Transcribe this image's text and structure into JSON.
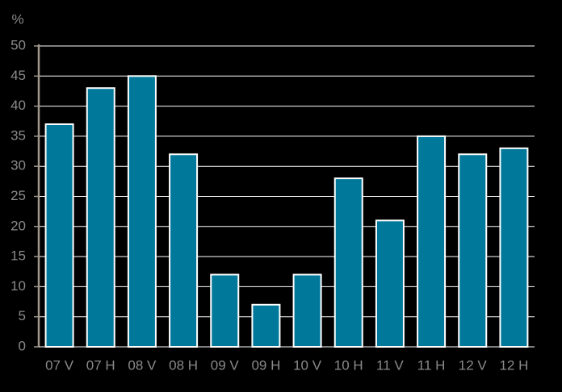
{
  "chart_data": {
    "type": "bar",
    "y_label": "%",
    "categories": [
      "07 V",
      "07 H",
      "08 V",
      "08 H",
      "09 V",
      "09 H",
      "10 V",
      "10 H",
      "11 V",
      "11 H",
      "12 V",
      "12 H"
    ],
    "values": [
      37,
      43,
      45,
      32,
      12,
      7,
      12,
      28,
      21,
      35,
      32,
      33
    ],
    "color": "#00789a",
    "ylim": [
      0,
      50
    ],
    "yticks": [
      0,
      5,
      10,
      15,
      20,
      25,
      30,
      35,
      40,
      45,
      50
    ],
    "grid": true
  }
}
